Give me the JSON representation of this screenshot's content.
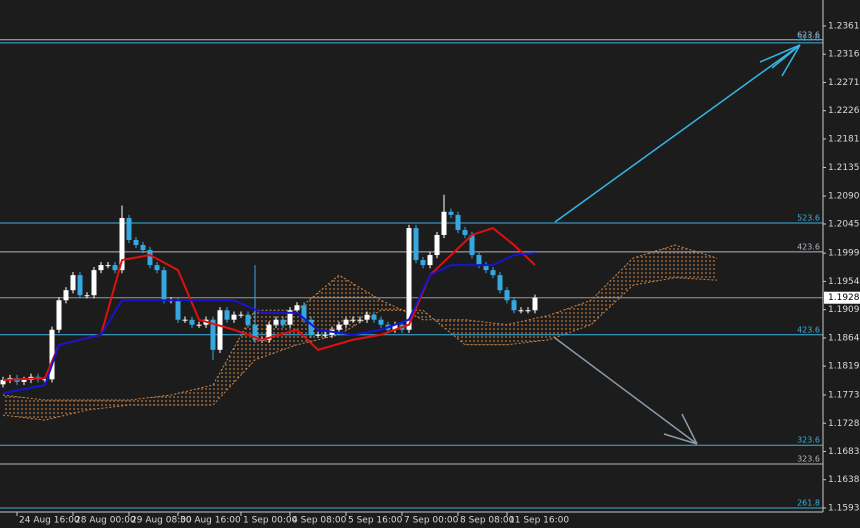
{
  "chart_data": {
    "type": "candlestick",
    "categories": [
      null,
      null,
      "24 Aug 16:00",
      null,
      null,
      null,
      null,
      null,
      null,
      null,
      "28 Aug 00:00",
      null,
      null,
      null,
      null,
      null,
      null,
      null,
      "29 Aug 08:00",
      null,
      null,
      null,
      null,
      null,
      null,
      "30 Aug 16:00",
      null,
      null,
      null,
      null,
      null,
      null,
      null,
      null,
      "1 Sep 00:00",
      null,
      null,
      null,
      null,
      null,
      null,
      "4 Sep 08:00",
      null,
      null,
      null,
      null,
      null,
      null,
      null,
      "5 Sep 16:00",
      null,
      null,
      null,
      null,
      null,
      null,
      null,
      "7 Sep 00:00",
      null,
      null,
      null,
      null,
      null,
      null,
      null,
      "8 Sep 08:00",
      null,
      null,
      null,
      null,
      null,
      null,
      "11 Sep 16:00",
      null,
      null,
      null,
      null
    ],
    "open": [
      1.179,
      1.1797,
      1.18,
      1.1794,
      1.1797,
      1.1802,
      1.1798,
      1.1798,
      1.1877,
      1.1924,
      1.194,
      1.1964,
      1.1932,
      1.1932,
      1.1972,
      1.198,
      1.198,
      1.1972,
      1.2055,
      1.202,
      1.2012,
      1.2004,
      1.198,
      1.1972,
      1.1924,
      1.1924,
      1.1893,
      1.1893,
      1.1885,
      1.1885,
      1.1893,
      1.1845,
      1.1908,
      1.1893,
      1.1901,
      1.1901,
      1.1885,
      1.1861,
      1.1861,
      1.1885,
      1.1893,
      1.1885,
      1.1908,
      1.1916,
      1.1893,
      1.1869,
      1.1869,
      1.1869,
      1.1877,
      1.1885,
      1.1893,
      1.1893,
      1.1893,
      1.1901,
      1.1893,
      1.1885,
      1.1877,
      1.1885,
      1.1877,
      1.2039,
      1.1988,
      1.198,
      1.1996,
      1.2028,
      1.2065,
      1.206,
      1.2036,
      1.2028,
      1.1996,
      1.198,
      1.1972,
      1.1964,
      1.194,
      1.1924,
      1.1908,
      1.1908,
      1.1908
    ],
    "high": [
      1.1802,
      1.1805,
      1.1805,
      1.1802,
      1.1807,
      1.1807,
      1.1803,
      1.1882,
      1.1929,
      1.1945,
      1.1969,
      1.1969,
      1.1937,
      1.1977,
      1.1985,
      1.1985,
      1.1985,
      1.2075,
      1.206,
      1.2025,
      1.2017,
      1.2009,
      1.1985,
      1.1977,
      1.1929,
      1.1929,
      1.1898,
      1.1898,
      1.189,
      1.1898,
      1.1898,
      1.1913,
      1.1913,
      1.1906,
      1.1906,
      1.1906,
      1.198,
      1.1866,
      1.189,
      1.1898,
      1.1898,
      1.1913,
      1.1921,
      1.1921,
      1.1898,
      1.1874,
      1.1874,
      1.1882,
      1.189,
      1.1898,
      1.1898,
      1.1898,
      1.1906,
      1.1906,
      1.1898,
      1.189,
      1.189,
      1.189,
      1.2044,
      1.2044,
      1.1993,
      1.2001,
      1.2033,
      1.2092,
      1.207,
      1.2065,
      1.2041,
      1.2033,
      1.2001,
      1.1985,
      1.1977,
      1.1969,
      1.1945,
      1.1929,
      1.1913,
      1.1913,
      1.1933
    ],
    "low": [
      1.1785,
      1.1792,
      1.1789,
      1.1789,
      1.1792,
      1.1793,
      1.1793,
      1.1793,
      1.1872,
      1.1919,
      1.1935,
      1.1927,
      1.1927,
      1.1927,
      1.1967,
      1.1975,
      1.1967,
      1.1967,
      1.2015,
      1.2007,
      1.1999,
      1.1975,
      1.1967,
      1.1919,
      1.1919,
      1.1888,
      1.1888,
      1.188,
      1.188,
      1.188,
      1.1829,
      1.184,
      1.1888,
      1.1888,
      1.1896,
      1.188,
      1.1856,
      1.1856,
      1.1856,
      1.188,
      1.188,
      1.188,
      1.1903,
      1.1888,
      1.1864,
      1.1864,
      1.1864,
      1.1864,
      1.1872,
      1.188,
      1.1888,
      1.1888,
      1.1888,
      1.1888,
      1.188,
      1.1872,
      1.1872,
      1.1872,
      1.1872,
      1.1983,
      1.1975,
      1.1975,
      1.1991,
      1.2023,
      1.2055,
      1.2031,
      1.2023,
      1.1991,
      1.1975,
      1.1967,
      1.1959,
      1.1935,
      1.1919,
      1.1903,
      1.1903,
      1.1903,
      1.1903
    ],
    "close": [
      1.1797,
      1.18,
      1.1794,
      1.1797,
      1.1802,
      1.1798,
      1.1798,
      1.1877,
      1.1924,
      1.194,
      1.1964,
      1.1932,
      1.1932,
      1.1972,
      1.198,
      1.198,
      1.1972,
      1.2055,
      1.202,
      1.2012,
      1.2004,
      1.198,
      1.1972,
      1.1924,
      1.1924,
      1.1893,
      1.1893,
      1.1885,
      1.1885,
      1.1893,
      1.1845,
      1.1908,
      1.1893,
      1.1901,
      1.1901,
      1.1885,
      1.1861,
      1.1861,
      1.1885,
      1.1893,
      1.1885,
      1.1908,
      1.1916,
      1.1893,
      1.1869,
      1.1869,
      1.1869,
      1.1877,
      1.1885,
      1.1893,
      1.1893,
      1.1893,
      1.1901,
      1.1893,
      1.1885,
      1.1877,
      1.1885,
      1.1877,
      1.2039,
      1.1988,
      1.198,
      1.1996,
      1.2028,
      1.2065,
      1.206,
      1.2036,
      1.2028,
      1.1996,
      1.198,
      1.1972,
      1.1964,
      1.194,
      1.1924,
      1.1908,
      1.1908,
      1.1908,
      1.1928
    ],
    "up_color": "#ffffff",
    "down_color": "#35a8e0",
    "ylim": [
      1.15611,
      1.24024
    ],
    "yticks": [
      {
        "value": 1.2361,
        "label": "1.23610"
      },
      {
        "value": 1.2316,
        "label": "1.23160"
      },
      {
        "value": 1.2271,
        "label": "1.22710"
      },
      {
        "value": 1.2226,
        "label": "1.22260"
      },
      {
        "value": 1.2181,
        "label": "1.21810"
      },
      1.21355,
      {
        "value": 1.209,
        "label": "1.20900"
      },
      1.20455,
      {
        "value": 1.1999,
        "label": "1.19990"
      },
      {
        "value": 1.1954,
        "label": "1.19540"
      },
      {
        "value": 1.1909,
        "label": "1.19090"
      },
      {
        "value": 1.1864,
        "label": "1.18640"
      },
      {
        "value": 1.1819,
        "label": "1.18190"
      },
      {
        "value": 1.1773,
        "label": "1.17730"
      },
      {
        "value": 1.1728,
        "label": "1.17280"
      },
      {
        "value": 1.1683,
        "label": "1.16830"
      },
      {
        "value": 1.1638,
        "label": "1.16380"
      },
      {
        "value": 1.1593,
        "label": "1.15930"
      }
    ],
    "current": {
      "value": 1.1928,
      "label": "1.19280"
    },
    "levels": [
      {
        "value": 1.2339,
        "label": "623.6",
        "color": "#b0b8c0"
      },
      {
        "value": 1.2334,
        "label": "523.6",
        "color": "#3bb0e0"
      },
      {
        "value": 1.2047,
        "label": "523.6",
        "color": "#3bb0e0"
      },
      {
        "value": 1.2001,
        "label": "423.6",
        "color": "#b0b8c0"
      },
      {
        "value": 1.1869,
        "label": "423.6",
        "color": "#3bb0e0"
      },
      {
        "value": 1.1693,
        "label": "323.6",
        "color": "#3bb0e0"
      },
      {
        "value": 1.1663,
        "label": "323.6",
        "color": "#b0b8c0"
      },
      {
        "value": 1.1593,
        "label": "261.8",
        "color": "#3bb0e0"
      }
    ],
    "lines": [
      {
        "color": "#e01010",
        "x": [
          0,
          6,
          8,
          14,
          17,
          21,
          25,
          28,
          33,
          37,
          42,
          45,
          50,
          54,
          58,
          61,
          64,
          67,
          70,
          73,
          76
        ],
        "values": [
          1.1797,
          1.18,
          1.1853,
          1.1869,
          1.1988,
          1.1996,
          1.1972,
          1.1893,
          1.1877,
          1.1861,
          1.1877,
          1.1845,
          1.1861,
          1.1869,
          1.1885,
          1.1964,
          1.1996,
          1.2028,
          1.2039,
          1.2012,
          1.198
        ]
      },
      {
        "color": "#1515d0",
        "x": [
          0,
          6,
          8,
          14,
          17,
          21,
          25,
          28,
          33,
          37,
          42,
          45,
          50,
          54,
          58,
          61,
          64,
          67,
          70,
          73,
          76
        ],
        "values": [
          1.1776,
          1.1789,
          1.1853,
          1.1869,
          1.1924,
          1.1924,
          1.1924,
          1.1924,
          1.1924,
          1.1904,
          1.1904,
          1.1877,
          1.1869,
          1.1877,
          1.1893,
          1.1964,
          1.198,
          1.198,
          1.198,
          1.1996,
          1.1999
        ]
      }
    ],
    "cloud": {
      "color": "#d0884a",
      "x": [
        0,
        6,
        12,
        18,
        24,
        30,
        36,
        42,
        48,
        54,
        60,
        66,
        72,
        78,
        84,
        90,
        96,
        102
      ],
      "a": [
        1.1773,
        1.1765,
        1.1765,
        1.1765,
        1.1773,
        1.1789,
        1.1908,
        1.1908,
        1.1964,
        1.1924,
        1.1893,
        1.1893,
        1.1885,
        1.19,
        1.1924,
        1.1991,
        1.2012,
        1.1991
      ],
      "b": [
        1.1741,
        1.1733,
        1.1749,
        1.1757,
        1.1757,
        1.1757,
        1.1829,
        1.1853,
        1.1869,
        1.1908,
        1.1908,
        1.1853,
        1.1853,
        1.1861,
        1.1885,
        1.1948,
        1.196,
        1.1956
      ]
    }
  }
}
